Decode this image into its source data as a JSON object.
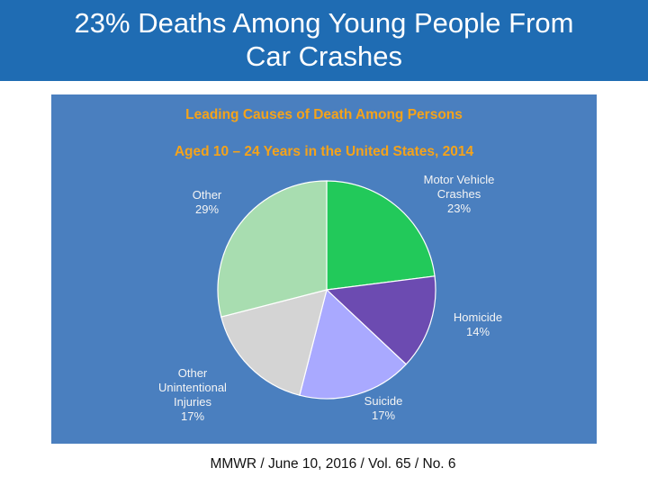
{
  "slide": {
    "title": "23% Deaths Among Young People From Car Crashes",
    "source": "MMWR / June 10, 2016 / Vol. 65 / No. 6"
  },
  "chart_data": {
    "type": "pie",
    "title": "Leading Causes of Death Among Persons",
    "subtitle": "Aged 10 – 24 Years in the United States, 2014",
    "slices": [
      {
        "label": "Motor Vehicle Crashes",
        "label_lines": [
          "Motor Vehicle",
          "Crashes"
        ],
        "value": 23,
        "value_label": "23%",
        "color": "#22c95a"
      },
      {
        "label": "Homicide",
        "label_lines": [
          "Homicide"
        ],
        "value": 14,
        "value_label": "14%",
        "color": "#6c4bb1"
      },
      {
        "label": "Suicide",
        "label_lines": [
          "Suicide"
        ],
        "value": 17,
        "value_label": "17%",
        "color": "#a9a9ff"
      },
      {
        "label": "Other Unintentional Injuries",
        "label_lines": [
          "Other",
          "Unintentional",
          "Injuries"
        ],
        "value": 17,
        "value_label": "17%",
        "color": "#d4d4d4"
      },
      {
        "label": "Other",
        "label_lines": [
          "Other"
        ],
        "value": 29,
        "value_label": "29%",
        "color": "#a8ddb0"
      }
    ]
  }
}
